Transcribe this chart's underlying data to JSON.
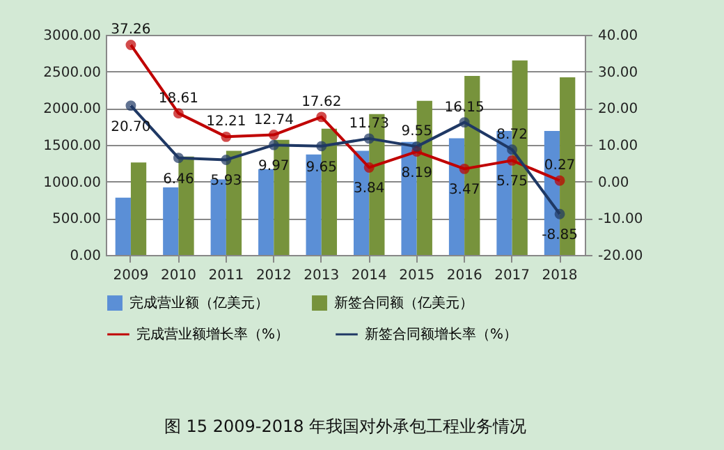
{
  "chart_data": {
    "type": "bar",
    "title": "图 15 2009-2018 年我国对外承包工程业务情况",
    "categories": [
      "2009",
      "2010",
      "2011",
      "2012",
      "2013",
      "2014",
      "2015",
      "2016",
      "2017",
      "2018"
    ],
    "series": [
      {
        "name": "完成营业额（亿美元）",
        "color": "#5b8fd6",
        "values": [
          780,
          920,
          1030,
          1170,
          1370,
          1420,
          1540,
          1590,
          1690,
          1690
        ]
      },
      {
        "name": "新签合同额（亿美元）",
        "color": "#77933c",
        "values": [
          1260,
          1340,
          1420,
          1570,
          1720,
          1920,
          2100,
          2440,
          2650,
          2420
        ]
      },
      {
        "name": "完成营业额增长率（%）",
        "type": "line",
        "axis": "y2",
        "color": "#c00000",
        "values": [
          37.26,
          18.61,
          12.21,
          12.74,
          17.62,
          3.84,
          8.19,
          3.47,
          5.75,
          0.27
        ],
        "value_labels": [
          "37.26",
          "18.61",
          "12.21",
          "12.74",
          "17.62",
          "3.84",
          "8.19",
          "3.47",
          "5.75",
          "0.27"
        ]
      },
      {
        "name": "新签合同额增长率（%）",
        "type": "line",
        "axis": "y2",
        "color": "#1f3864",
        "values": [
          20.7,
          6.46,
          5.93,
          9.97,
          9.65,
          11.73,
          9.55,
          16.15,
          8.72,
          -8.85
        ],
        "value_labels": [
          "20.70",
          "6.46",
          "5.93",
          "9.97",
          "9.65",
          "11.73",
          "9.55",
          "16.15",
          "8.72",
          "-8.85"
        ]
      }
    ],
    "ylim": [
      0,
      3000
    ],
    "yticks": [
      {
        "value": 0,
        "label": "0.00"
      },
      {
        "value": 500,
        "label": "500.00"
      },
      {
        "value": 1000,
        "label": "1000.00"
      },
      {
        "value": 1500,
        "label": "1500.00"
      },
      {
        "value": 2000,
        "label": "2000.00"
      },
      {
        "value": 2500,
        "label": "2500.00"
      },
      {
        "value": 3000,
        "label": "3000.00"
      }
    ],
    "y2lim": [
      -20,
      40
    ],
    "y2ticks": [
      {
        "value": -20,
        "label": "-20.00"
      },
      {
        "value": -10,
        "label": "-10.00"
      },
      {
        "value": 0,
        "label": "0.00"
      },
      {
        "value": 10,
        "label": "10.00"
      },
      {
        "value": 20,
        "label": "20.00"
      },
      {
        "value": 30,
        "label": "30.00"
      },
      {
        "value": 40,
        "label": "40.00"
      }
    ],
    "grid": "y",
    "legend": "bottom",
    "marker": "circle"
  }
}
